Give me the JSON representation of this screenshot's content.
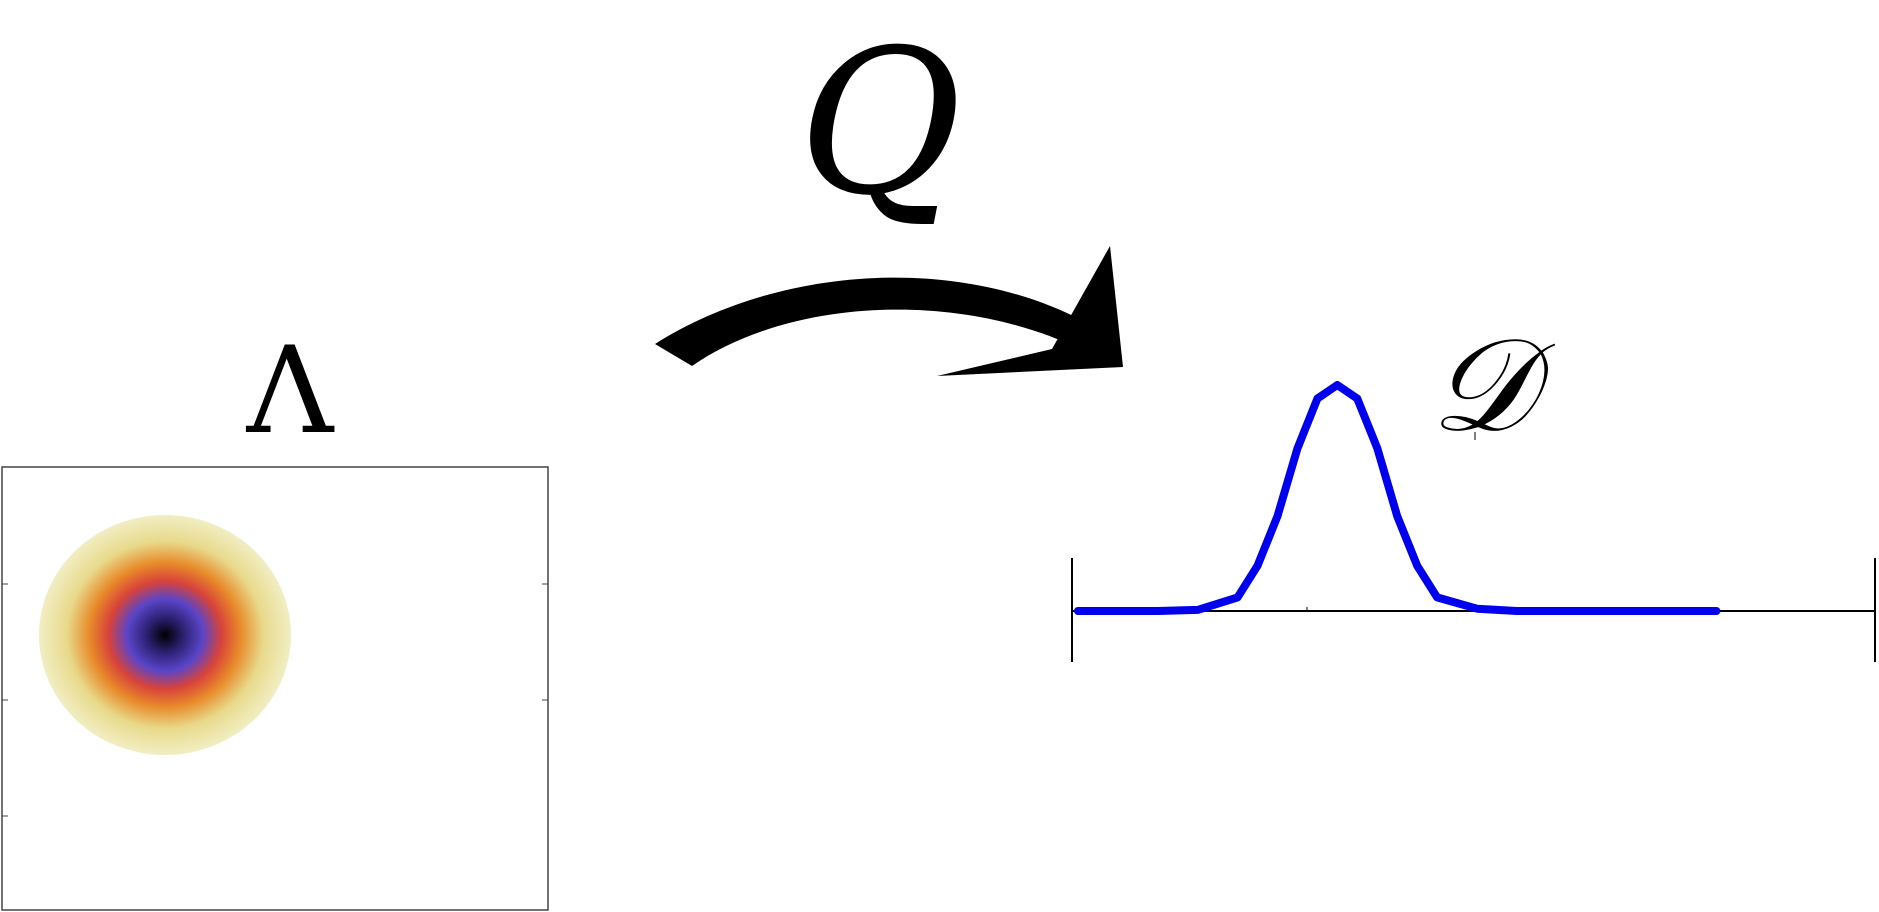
{
  "labels": {
    "lambda": "Λ",
    "map": "Q",
    "distribution": "𝒟"
  },
  "colors": {
    "curve": "#0000ee",
    "axis": "#000000",
    "arrow": "#000000",
    "heat_center": "#000000",
    "heat_inner": "#4a3ab8",
    "heat_mid": "#e0452a",
    "heat_outer": "#eeeab8"
  },
  "chart_data": [
    {
      "type": "heatmap",
      "title": "",
      "description_shape": "radial",
      "peak": {
        "x": 0.3,
        "y": 0.6
      }
    },
    {
      "type": "line",
      "title": "",
      "xlim": [
        0,
        10
      ],
      "ylim": [
        0,
        1
      ],
      "series": [
        {
          "x": [
            0,
            0.5,
            1.0,
            1.5,
            2.0,
            2.25,
            2.5,
            2.75,
            3.0,
            3.25,
            3.5,
            3.75,
            4.0,
            4.25,
            4.5,
            5.0,
            5.5,
            6.0,
            7.0,
            8.0
          ],
          "values": [
            0.0,
            0.0,
            0.0,
            0.005,
            0.06,
            0.2,
            0.42,
            0.72,
            0.94,
            1.0,
            0.94,
            0.72,
            0.42,
            0.2,
            0.06,
            0.01,
            0.0,
            0.0,
            0.0,
            0.0
          ]
        }
      ]
    }
  ]
}
